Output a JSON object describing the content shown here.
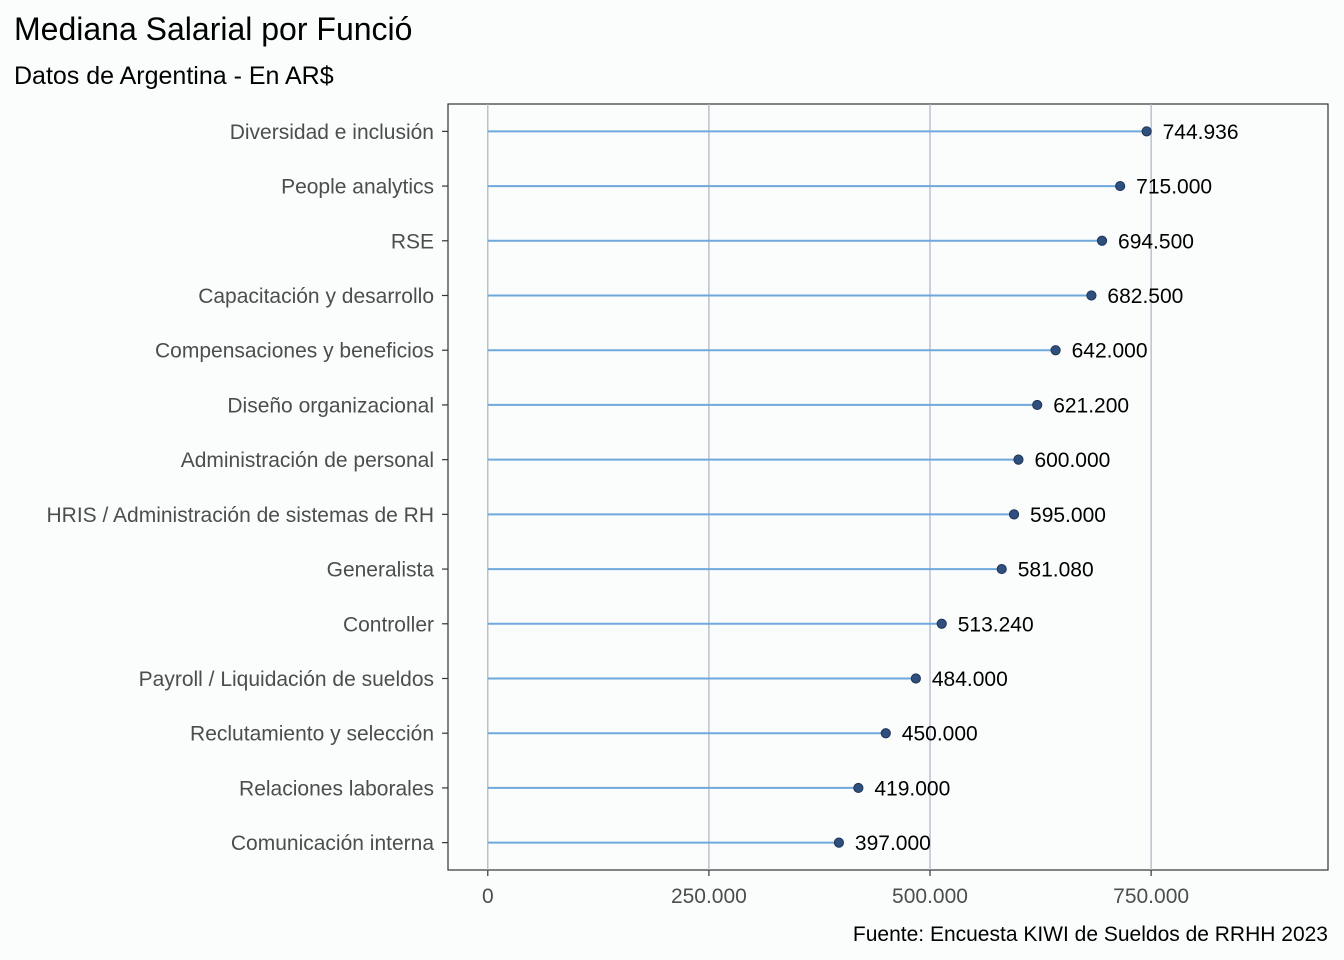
{
  "chart_data": {
    "type": "lollipop",
    "title": "Mediana Salarial por Funció",
    "subtitle": "Datos de Argentina - En AR$",
    "caption": "Fuente: Encuesta KIWI de Sueldos de RRHH 2023",
    "xlabel": "",
    "ylabel": "",
    "xlim": [
      -45000,
      950000
    ],
    "xticks": [
      0,
      250000,
      500000,
      750000
    ],
    "xtick_labels": [
      "0",
      "250.000",
      "500.000",
      "750.000"
    ],
    "grid": "vertical",
    "colors": {
      "segment": "#6fa8dc",
      "point": "#2f4f7f",
      "grid": "#a9b4c2",
      "panel_border": "#333333"
    },
    "categories": [
      "Diversidad e inclusión",
      "People analytics",
      "RSE",
      "Capacitación y desarrollo",
      "Compensaciones y beneficios",
      "Diseño organizacional",
      "Administración de personal",
      "HRIS / Administración de sistemas de RH",
      "Generalista",
      "Controller",
      "Payroll / Liquidación de sueldos",
      "Reclutamiento y selección",
      "Relaciones laborales",
      "Comunicación interna"
    ],
    "values": [
      744936,
      715000,
      694500,
      682500,
      642000,
      621200,
      600000,
      595000,
      581080,
      513240,
      484000,
      450000,
      419000,
      397000
    ],
    "value_labels": [
      "744.936",
      "715.000",
      "694.500",
      "682.500",
      "642.000",
      "621.200",
      "600.000",
      "595.000",
      "581.080",
      "513.240",
      "484.000",
      "450.000",
      "419.000",
      "397.000"
    ]
  }
}
